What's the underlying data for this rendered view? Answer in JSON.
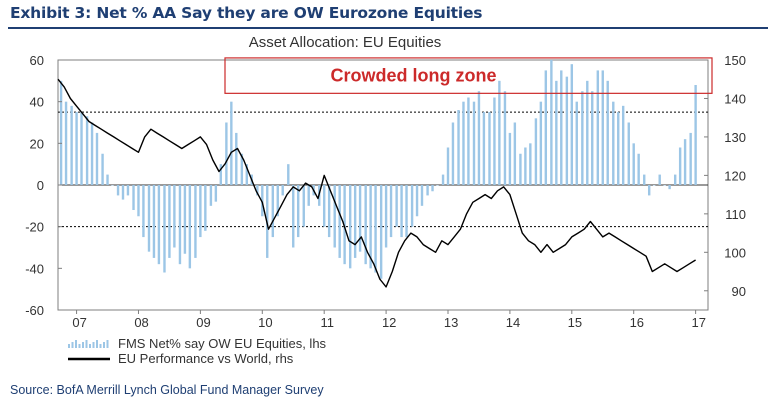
{
  "exhibit": {
    "title": "Exhibit 3: Net % AA Say they are OW Eurozone Equities",
    "source": "Source: BofA Merrill Lynch Global Fund Manager Survey"
  },
  "colors": {
    "bars": "#9cc6e6",
    "line": "#000000",
    "zone": "#cc2a2a",
    "frame": "#7f7f7f",
    "header": "#1f3f73"
  },
  "chart_data": {
    "type": "bar+line",
    "title": "Asset Allocation: EU Equities",
    "annotation": "Crowded long zone",
    "x_tick_labels": [
      "07",
      "08",
      "09",
      "10",
      "11",
      "12",
      "13",
      "14",
      "15",
      "16",
      "17"
    ],
    "x_range": [
      2006.7,
      2017.2
    ],
    "y_left": {
      "range": [
        -60,
        60
      ],
      "ticks": [
        -60,
        -40,
        -20,
        0,
        20,
        40,
        60
      ]
    },
    "y_right": {
      "range": [
        85,
        150
      ],
      "ticks": [
        90,
        100,
        110,
        120,
        130,
        140,
        150
      ]
    },
    "reference_lines_lhs": [
      35,
      -20
    ],
    "crowded_zone_lhs": [
      44,
      61
    ],
    "legend": [
      {
        "label": "FMS Net% say OW EU Equities, lhs",
        "style": "bars"
      },
      {
        "label": "EU Performance vs World, rhs",
        "style": "line"
      }
    ],
    "series": [
      {
        "name": "FMS Net% say OW EU Equities, lhs",
        "axis": "lhs",
        "kind": "bar",
        "x": [
          2006.75,
          2006.83,
          2006.92,
          2007.0,
          2007.08,
          2007.17,
          2007.25,
          2007.33,
          2007.42,
          2007.5,
          2007.58,
          2007.67,
          2007.75,
          2007.83,
          2007.92,
          2008.0,
          2008.08,
          2008.17,
          2008.25,
          2008.33,
          2008.42,
          2008.5,
          2008.58,
          2008.67,
          2008.75,
          2008.83,
          2008.92,
          2009.0,
          2009.08,
          2009.17,
          2009.25,
          2009.33,
          2009.42,
          2009.5,
          2009.58,
          2009.67,
          2009.75,
          2009.83,
          2009.92,
          2010.0,
          2010.08,
          2010.17,
          2010.25,
          2010.33,
          2010.42,
          2010.5,
          2010.58,
          2010.67,
          2010.75,
          2010.83,
          2010.92,
          2011.0,
          2011.08,
          2011.17,
          2011.25,
          2011.33,
          2011.42,
          2011.5,
          2011.58,
          2011.67,
          2011.75,
          2011.83,
          2011.92,
          2012.0,
          2012.08,
          2012.17,
          2012.25,
          2012.33,
          2012.42,
          2012.5,
          2012.58,
          2012.67,
          2012.75,
          2012.83,
          2012.92,
          2013.0,
          2013.08,
          2013.17,
          2013.25,
          2013.33,
          2013.42,
          2013.5,
          2013.58,
          2013.67,
          2013.75,
          2013.83,
          2013.92,
          2014.0,
          2014.08,
          2014.17,
          2014.25,
          2014.33,
          2014.42,
          2014.5,
          2014.58,
          2014.67,
          2014.75,
          2014.83,
          2014.92,
          2015.0,
          2015.08,
          2015.17,
          2015.25,
          2015.33,
          2015.42,
          2015.5,
          2015.58,
          2015.67,
          2015.75,
          2015.83,
          2015.92,
          2016.0,
          2016.08,
          2016.17,
          2016.25,
          2016.33,
          2016.42,
          2016.5,
          2016.58,
          2016.67,
          2016.75,
          2016.83,
          2016.92,
          2017.0
        ],
        "values": [
          50,
          40,
          38,
          35,
          35,
          33,
          30,
          25,
          15,
          5,
          0,
          -5,
          -7,
          -5,
          -12,
          -15,
          -25,
          -32,
          -35,
          -38,
          -42,
          -35,
          -30,
          -38,
          -33,
          -40,
          -35,
          -25,
          -22,
          -10,
          -8,
          10,
          30,
          40,
          25,
          15,
          10,
          5,
          -5,
          -15,
          -35,
          -25,
          -15,
          -5,
          10,
          -30,
          -25,
          -20,
          -10,
          -5,
          -10,
          -20,
          -25,
          -30,
          -35,
          -38,
          -40,
          -35,
          -32,
          -38,
          -40,
          -42,
          -45,
          -30,
          -25,
          -20,
          -25,
          -25,
          -20,
          -15,
          -10,
          -5,
          -3,
          0,
          5,
          18,
          30,
          36,
          40,
          42,
          40,
          45,
          35,
          35,
          42,
          50,
          45,
          25,
          30,
          15,
          18,
          20,
          32,
          40,
          55,
          60,
          50,
          55,
          52,
          58,
          40,
          45,
          50,
          45,
          55,
          55,
          50,
          40,
          35,
          38,
          30,
          20,
          15,
          5,
          -5,
          0,
          5,
          0,
          -2,
          5,
          18,
          22,
          25,
          48
        ],
        "x_labels": [
          "07",
          "08",
          "09",
          "10",
          "11",
          "12",
          "13",
          "14",
          "15",
          "16",
          "17"
        ]
      },
      {
        "name": "EU Performance vs World, rhs",
        "axis": "rhs",
        "kind": "line",
        "x": [
          2006.7,
          2006.8,
          2006.9,
          2007.0,
          2007.1,
          2007.2,
          2007.3,
          2007.4,
          2007.5,
          2007.6,
          2007.7,
          2007.8,
          2007.9,
          2008.0,
          2008.1,
          2008.2,
          2008.3,
          2008.4,
          2008.5,
          2008.6,
          2008.7,
          2008.8,
          2008.9,
          2009.0,
          2009.1,
          2009.2,
          2009.3,
          2009.4,
          2009.5,
          2009.6,
          2009.7,
          2009.8,
          2009.9,
          2010.0,
          2010.1,
          2010.2,
          2010.3,
          2010.4,
          2010.5,
          2010.6,
          2010.7,
          2010.8,
          2010.9,
          2011.0,
          2011.1,
          2011.2,
          2011.3,
          2011.4,
          2011.5,
          2011.6,
          2011.7,
          2011.8,
          2011.9,
          2012.0,
          2012.1,
          2012.2,
          2012.3,
          2012.4,
          2012.5,
          2012.6,
          2012.7,
          2012.8,
          2012.9,
          2013.0,
          2013.1,
          2013.2,
          2013.3,
          2013.4,
          2013.5,
          2013.6,
          2013.7,
          2013.8,
          2013.9,
          2014.0,
          2014.1,
          2014.2,
          2014.3,
          2014.4,
          2014.5,
          2014.6,
          2014.7,
          2014.8,
          2014.9,
          2015.0,
          2015.1,
          2015.2,
          2015.3,
          2015.4,
          2015.5,
          2015.6,
          2015.7,
          2015.8,
          2015.9,
          2016.0,
          2016.1,
          2016.2,
          2016.3,
          2016.4,
          2016.5,
          2016.6,
          2016.7,
          2016.8,
          2016.9,
          2017.0
        ],
        "values": [
          145,
          143,
          140,
          138,
          136,
          134,
          133,
          132,
          131,
          130,
          129,
          128,
          127,
          126,
          130,
          132,
          131,
          130,
          129,
          128,
          127,
          128,
          129,
          130,
          128,
          124,
          121,
          123,
          126,
          127,
          124,
          120,
          116,
          113,
          106,
          109,
          112,
          115,
          117,
          116,
          118,
          117,
          114,
          120,
          116,
          112,
          108,
          103,
          102,
          104,
          100,
          97,
          93,
          91,
          95,
          100,
          103,
          105,
          104,
          102,
          101,
          100,
          103,
          102,
          104,
          106,
          110,
          113,
          114,
          115,
          114,
          116,
          117,
          115,
          110,
          105,
          103,
          102,
          100,
          102,
          100,
          101,
          102,
          104,
          105,
          106,
          108,
          106,
          104,
          105,
          104,
          103,
          102,
          101,
          100,
          99,
          95,
          96,
          97,
          96,
          95,
          96,
          97,
          98
        ]
      }
    ]
  }
}
